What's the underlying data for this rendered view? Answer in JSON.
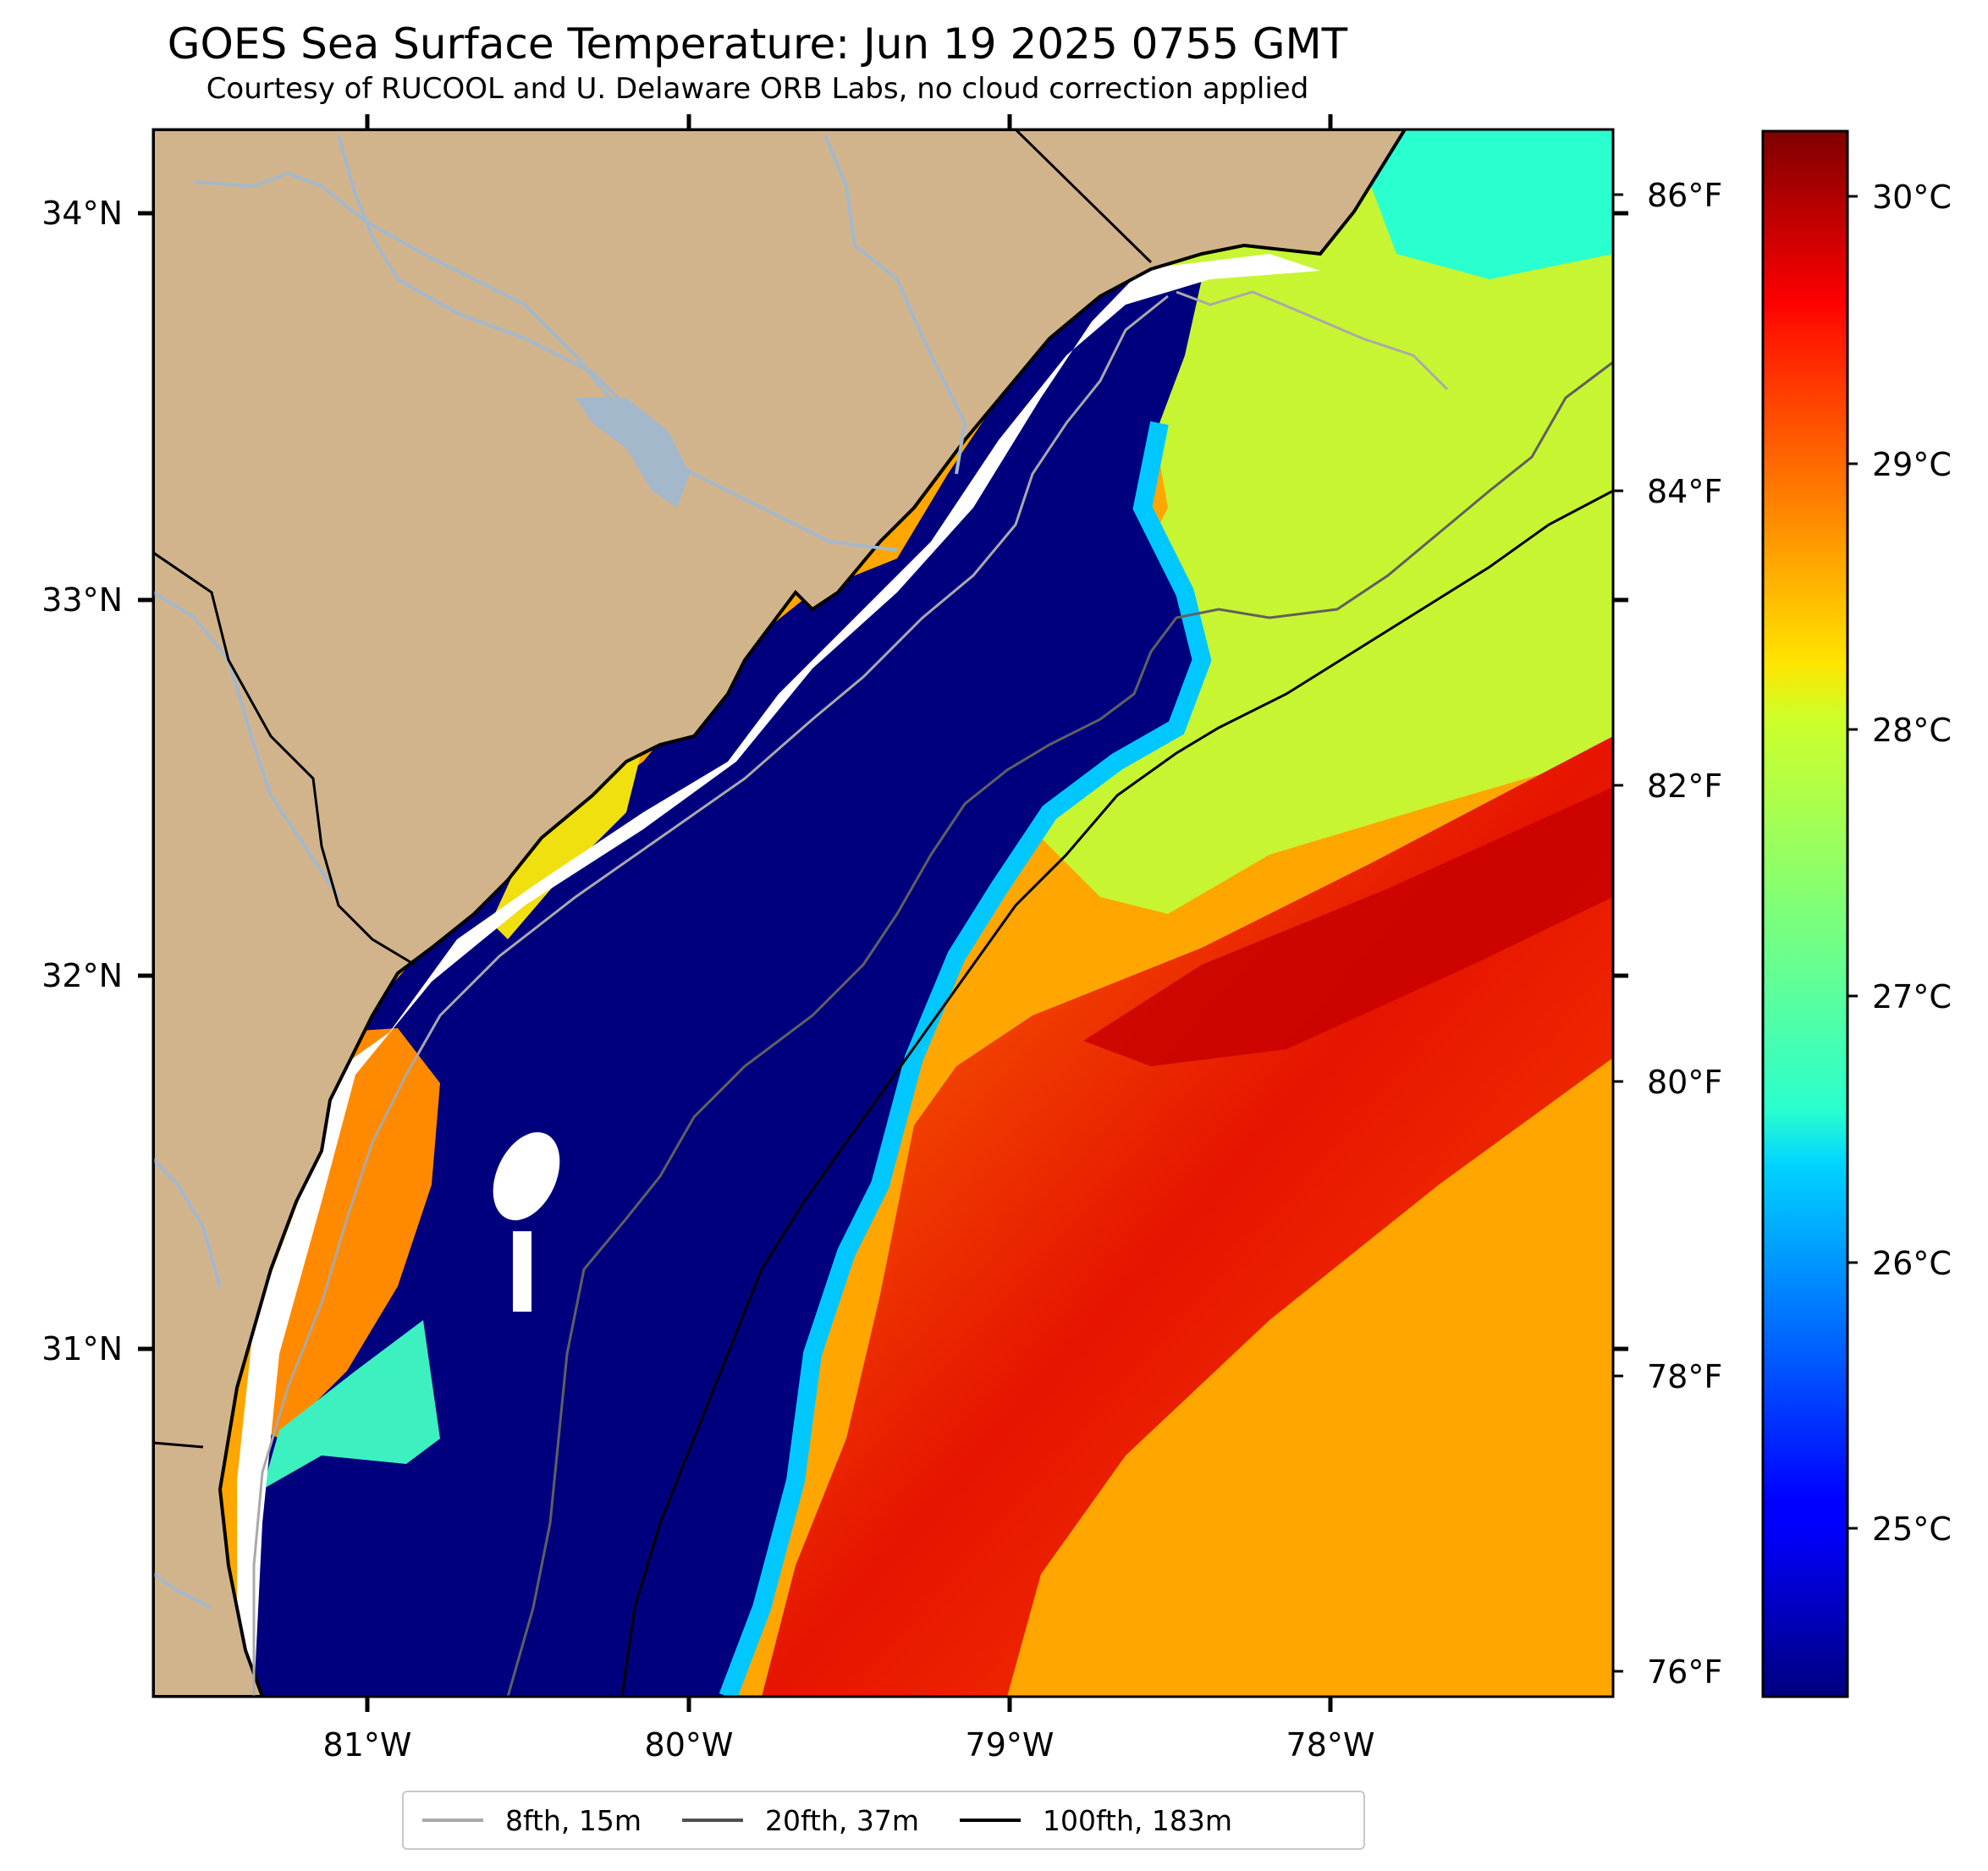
{
  "title": "GOES Sea Surface Temperature: Jun 19 2025 0755 GMT",
  "subtitle": "Courtesy of RUCOOL and U. Delaware ORB Labs, no cloud correction applied",
  "map": {
    "lon_ticks": [
      "81°W",
      "80°W",
      "79°W",
      "78°W"
    ],
    "lat_ticks": [
      "34°N",
      "33°N",
      "32°N",
      "31°N"
    ],
    "fahrenheit_ticks": [
      "86°F",
      "84°F",
      "82°F",
      "80°F",
      "78°F",
      "76°F"
    ],
    "land_color": "#d2b48c",
    "no_data_color": "#ffffff",
    "coastline_color": "#000000",
    "river_color": "#a4b8cc"
  },
  "colorbar": {
    "colormap": "jet",
    "tick_labels": [
      "30°C",
      "29°C",
      "28°C",
      "27°C",
      "26°C",
      "25°C"
    ]
  },
  "legend": [
    {
      "label": "8fth, 15m",
      "color": "#a9a9a9"
    },
    {
      "label": "20fth, 37m",
      "color": "#505050"
    },
    {
      "label": "100fth, 183m",
      "color": "#000000"
    }
  ]
}
